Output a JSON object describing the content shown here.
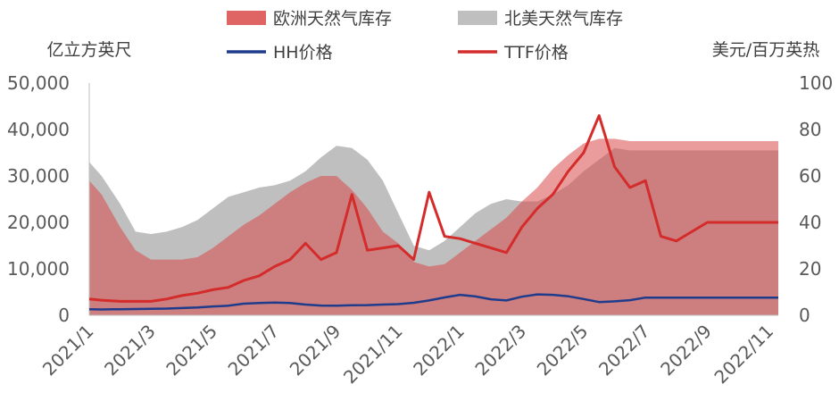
{
  "chart_data": {
    "type": "area",
    "x_categories": [
      "2021/1",
      "2021/3",
      "2021/5",
      "2021/7",
      "2021/9",
      "2021/11",
      "2022/1",
      "2022/3",
      "2022/5",
      "2022/7",
      "2022/9",
      "2022/11"
    ],
    "left_axis": {
      "label": "亿立方英尺",
      "ylim": [
        0,
        50000
      ],
      "ticks": [
        "0",
        "10,000",
        "20,000",
        "30,000",
        "40,000",
        "50,000"
      ]
    },
    "right_axis": {
      "label": "美元/百万英热",
      "ylim": [
        0,
        100
      ],
      "ticks": [
        "0",
        "20",
        "40",
        "60",
        "80",
        "100"
      ]
    },
    "legend": [
      {
        "name": "欧洲天然气库存",
        "color": "#d94a4a",
        "type": "area"
      },
      {
        "name": "北美天然气库存",
        "color": "#bfbfbf",
        "type": "area"
      },
      {
        "name": "HH价格",
        "color": "#1f3b8c",
        "type": "line"
      },
      {
        "name": "TTF价格",
        "color": "#d42b2b",
        "type": "line"
      }
    ],
    "x_index": [
      0,
      0.4,
      1,
      1.5,
      2,
      2.5,
      3,
      3.5,
      4,
      4.5,
      5,
      5.5,
      6,
      6.5,
      7,
      7.5,
      8,
      8.5,
      9,
      9.5,
      10,
      10.5,
      11,
      11.5,
      12,
      12.5,
      13,
      13.5,
      14,
      14.5,
      15,
      15.5,
      16,
      16.5,
      17,
      17.5,
      18,
      18.5,
      19,
      19.5,
      20,
      20.5,
      21,
      21.5,
      22,
      22.3
    ],
    "series": [
      {
        "name": "北美天然气库存",
        "axis": "left",
        "values": [
          33000,
          30000,
          24000,
          18000,
          17500,
          18000,
          19000,
          20500,
          23000,
          25500,
          26500,
          27500,
          28000,
          29000,
          31000,
          34000,
          36500,
          36000,
          33500,
          29000,
          22000,
          15000,
          14000,
          16000,
          19000,
          22000,
          24000,
          25000,
          24500,
          24500,
          26000,
          28000,
          31000,
          33500,
          36000,
          35500,
          35500,
          35500,
          35500,
          35500,
          35500,
          35500,
          35500,
          35500,
          35500,
          35500
        ]
      },
      {
        "name": "欧洲天然气库存",
        "axis": "left",
        "values": [
          29000,
          26000,
          19000,
          14000,
          12000,
          12000,
          12000,
          12500,
          14500,
          17000,
          19500,
          21500,
          24000,
          26500,
          28500,
          30000,
          30000,
          27000,
          23000,
          18000,
          15500,
          11500,
          10500,
          11000,
          13500,
          16000,
          18500,
          21000,
          24500,
          27500,
          31500,
          34500,
          37000,
          38000,
          38000,
          37500,
          37500,
          37500,
          37500,
          37500,
          37500,
          37500,
          37500,
          37500,
          37500,
          37500
        ]
      },
      {
        "name": "TTF价格",
        "axis": "right",
        "values": [
          7,
          6.5,
          6,
          6,
          6,
          7,
          8.5,
          9.5,
          11,
          12,
          15,
          17,
          21,
          24,
          31,
          24,
          27,
          52,
          28,
          29,
          30,
          24,
          53,
          34,
          33,
          31,
          29,
          27,
          38,
          46,
          52,
          62,
          70,
          86,
          64,
          55,
          58,
          34,
          32,
          36,
          40,
          40,
          40,
          40,
          40,
          40
        ]
      },
      {
        "name": "HH价格",
        "axis": "right",
        "values": [
          2.6,
          2.5,
          2.6,
          2.7,
          2.8,
          2.9,
          3.1,
          3.4,
          3.8,
          4.1,
          5,
          5.3,
          5.5,
          5.3,
          4.6,
          4.2,
          4.1,
          4.3,
          4.4,
          4.6,
          4.8,
          5.4,
          6.4,
          7.7,
          8.8,
          8.1,
          6.9,
          6.4,
          8,
          9,
          8.8,
          8.2,
          7,
          5.7,
          6,
          6.5,
          7.6,
          7.6,
          7.6,
          7.6,
          7.6,
          7.6,
          7.6,
          7.6,
          7.6,
          7.6
        ]
      }
    ]
  }
}
